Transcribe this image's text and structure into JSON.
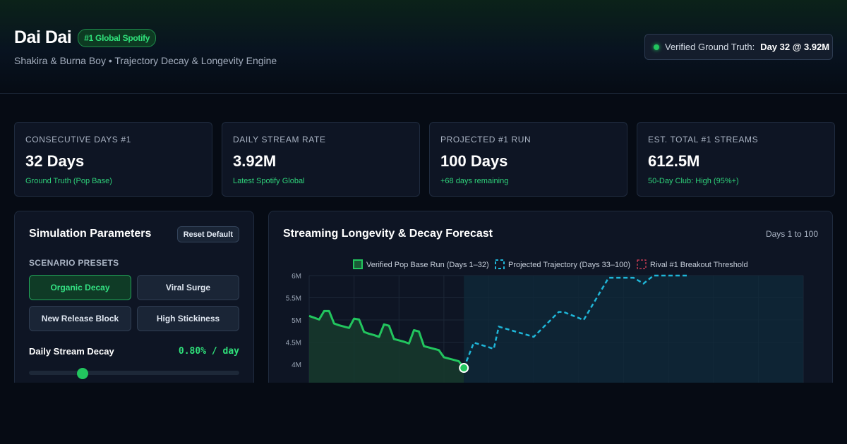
{
  "header": {
    "title": "Dai Dai",
    "badge": "#1 Global Spotify",
    "subtitle": "Shakira & Burna Boy • Trajectory Decay & Longevity Engine",
    "truth_prefix": "Verified Ground Truth:",
    "truth_value": "Day 32 @ 3.92M"
  },
  "kpis": [
    {
      "label": "Consecutive Days #1",
      "value": "32 Days",
      "note": "Ground Truth (Pop Base)"
    },
    {
      "label": "Daily Stream Rate",
      "value": "3.92M",
      "note": "Latest Spotify Global"
    },
    {
      "label": "Projected #1 Run",
      "value": "100 Days",
      "note": "+68 days remaining"
    },
    {
      "label": "Est. Total #1 Streams",
      "value": "612.5M",
      "note": "50-Day Club: High (95%+)"
    }
  ],
  "params": {
    "title": "Simulation Parameters",
    "reset_label": "Reset Default",
    "presets_label": "SCENARIO PRESETS",
    "presets": [
      "Organic Decay",
      "Viral Surge",
      "New Release Block",
      "High Stickiness"
    ],
    "active_preset": "Organic Decay",
    "decay_label": "Daily Stream Decay",
    "decay_value": "0.80% / day",
    "decay_percent": 0.8
  },
  "colors": {
    "accent_green": "#22c55e",
    "projected_cyan": "#1fb6d8",
    "rival_red": "#e0425b"
  },
  "chart_header": {
    "title": "Streaming Longevity & Decay Forecast",
    "range": "Days 1 to 100"
  },
  "chart_data": {
    "type": "line",
    "legend": [
      {
        "name": "Verified Pop Base Run (Days 1–32)",
        "style": "solid",
        "color": "#22c55e"
      },
      {
        "name": "Projected Trajectory (Days 33–100)",
        "style": "dashed",
        "color": "#1fb6d8"
      },
      {
        "name": "Rival #1 Breakout Threshold",
        "style": "dashed",
        "color": "#e0425b"
      }
    ],
    "legend_position": "top-center",
    "y_ticks": [
      "6M",
      "5.5M",
      "5M",
      "4.5M",
      "4M"
    ],
    "ylim": [
      3.0,
      6.0
    ],
    "xlim": [
      1,
      100
    ],
    "grid": true,
    "series": [
      {
        "name": "Verified Pop Base Run (Days 1–32)",
        "x": [
          1,
          2,
          3,
          4,
          5,
          6,
          7,
          8,
          9,
          10,
          11,
          12,
          13,
          14,
          15,
          16,
          17,
          18,
          19,
          20,
          21,
          22,
          23,
          24,
          25,
          26,
          27,
          28,
          29,
          30,
          31,
          32
        ],
        "y": [
          5.09,
          5.05,
          5.01,
          5.2,
          5.2,
          4.92,
          4.88,
          4.85,
          4.82,
          5.03,
          5.01,
          4.73,
          4.69,
          4.66,
          4.62,
          4.9,
          4.87,
          4.57,
          4.54,
          4.51,
          4.47,
          4.77,
          4.74,
          4.41,
          4.38,
          4.35,
          4.32,
          4.16,
          4.13,
          4.1,
          4.07,
          3.92
        ]
      },
      {
        "name": "Projected Trajectory (Days 33–100)",
        "x": [
          32,
          34,
          38,
          39,
          42,
          46,
          51,
          52,
          56,
          61,
          66,
          68,
          70,
          77
        ],
        "y": [
          3.92,
          4.49,
          4.35,
          4.85,
          4.75,
          4.62,
          5.18,
          5.18,
          5.0,
          5.95,
          5.95,
          5.82,
          6.0,
          6.0
        ]
      }
    ],
    "threshold_value": 6.0,
    "highlight_point": {
      "x": 32,
      "y": 3.92
    }
  }
}
